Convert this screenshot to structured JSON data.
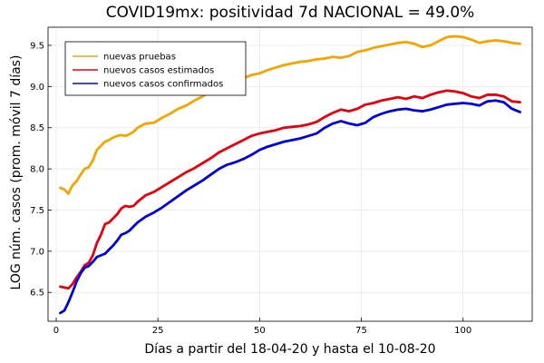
{
  "chart_data": {
    "type": "line",
    "title": "COVID19mx: positividad 7d NACIONAL = 49.0%",
    "xlabel": "Días a partir del 18-04-20 y hasta el 10-08-20",
    "ylabel": "LOG núm. casos (prom. móvil 7 días)",
    "xlim": [
      -2,
      117
    ],
    "ylim": [
      6.15,
      9.72
    ],
    "xticks": [
      0,
      25,
      50,
      75,
      100
    ],
    "yticks": [
      6.5,
      7.0,
      7.5,
      8.0,
      8.5,
      9.0,
      9.5
    ],
    "grid": true,
    "legend_position": "top-left",
    "series": [
      {
        "name": "nuevas pruebas",
        "color": "#f5a400",
        "x": [
          1,
          2,
          3,
          4,
          5,
          6,
          7,
          8,
          9,
          10,
          11,
          12,
          13,
          14,
          15,
          16,
          17,
          18,
          19,
          20,
          22,
          24,
          26,
          28,
          30,
          32,
          34,
          36,
          38,
          40,
          42,
          44,
          46,
          48,
          50,
          52,
          54,
          56,
          58,
          60,
          62,
          64,
          66,
          68,
          70,
          72,
          74,
          76,
          78,
          80,
          82,
          84,
          86,
          88,
          90,
          92,
          94,
          96,
          98,
          100,
          102,
          104,
          106,
          108,
          110,
          112,
          114
        ],
        "values": [
          7.77,
          7.75,
          7.7,
          7.8,
          7.85,
          7.93,
          8.0,
          8.02,
          8.1,
          8.23,
          8.28,
          8.33,
          8.35,
          8.38,
          8.4,
          8.41,
          8.4,
          8.42,
          8.45,
          8.5,
          8.55,
          8.56,
          8.62,
          8.67,
          8.73,
          8.77,
          8.83,
          8.88,
          8.94,
          8.98,
          9.02,
          9.06,
          9.1,
          9.14,
          9.16,
          9.2,
          9.23,
          9.26,
          9.28,
          9.3,
          9.31,
          9.33,
          9.34,
          9.36,
          9.35,
          9.37,
          9.42,
          9.44,
          9.47,
          9.49,
          9.51,
          9.53,
          9.54,
          9.52,
          9.48,
          9.5,
          9.55,
          9.6,
          9.61,
          9.6,
          9.57,
          9.53,
          9.55,
          9.56,
          9.55,
          9.53,
          9.52
        ]
      },
      {
        "name": "nuevos casos estimados",
        "color": "#e8000b",
        "x": [
          1,
          2,
          3,
          4,
          5,
          6,
          7,
          8,
          9,
          10,
          11,
          12,
          13,
          14,
          15,
          16,
          17,
          18,
          19,
          20,
          22,
          24,
          26,
          28,
          30,
          32,
          34,
          36,
          38,
          40,
          42,
          44,
          46,
          48,
          50,
          52,
          54,
          56,
          58,
          60,
          62,
          64,
          66,
          68,
          70,
          72,
          74,
          76,
          78,
          80,
          82,
          84,
          86,
          88,
          90,
          92,
          94,
          96,
          98,
          100,
          102,
          104,
          106,
          108,
          110,
          112,
          114
        ],
        "values": [
          6.57,
          6.56,
          6.55,
          6.6,
          6.68,
          6.75,
          6.83,
          6.86,
          6.95,
          7.1,
          7.2,
          7.33,
          7.35,
          7.4,
          7.45,
          7.52,
          7.55,
          7.54,
          7.55,
          7.6,
          7.68,
          7.72,
          7.78,
          7.84,
          7.9,
          7.96,
          8.01,
          8.07,
          8.13,
          8.2,
          8.25,
          8.3,
          8.35,
          8.4,
          8.43,
          8.45,
          8.47,
          8.5,
          8.51,
          8.52,
          8.54,
          8.57,
          8.63,
          8.68,
          8.72,
          8.7,
          8.73,
          8.78,
          8.8,
          8.83,
          8.85,
          8.87,
          8.85,
          8.88,
          8.86,
          8.9,
          8.93,
          8.95,
          8.94,
          8.92,
          8.88,
          8.86,
          8.9,
          8.9,
          8.88,
          8.82,
          8.81
        ]
      },
      {
        "name": "nuevos casos confirmados",
        "color": "#0000e0",
        "x": [
          1,
          2,
          3,
          4,
          5,
          6,
          7,
          8,
          9,
          10,
          11,
          12,
          13,
          14,
          15,
          16,
          17,
          18,
          19,
          20,
          22,
          24,
          26,
          28,
          30,
          32,
          34,
          36,
          38,
          40,
          42,
          44,
          46,
          48,
          50,
          52,
          54,
          56,
          58,
          60,
          62,
          64,
          66,
          68,
          70,
          72,
          74,
          76,
          78,
          80,
          82,
          84,
          86,
          88,
          90,
          92,
          94,
          96,
          98,
          100,
          102,
          104,
          106,
          108,
          110,
          112,
          114
        ],
        "values": [
          6.25,
          6.28,
          6.38,
          6.5,
          6.63,
          6.73,
          6.8,
          6.82,
          6.87,
          6.93,
          6.95,
          6.97,
          7.02,
          7.07,
          7.13,
          7.2,
          7.22,
          7.25,
          7.3,
          7.35,
          7.42,
          7.47,
          7.53,
          7.6,
          7.67,
          7.74,
          7.8,
          7.86,
          7.93,
          8.0,
          8.05,
          8.08,
          8.12,
          8.17,
          8.23,
          8.27,
          8.3,
          8.33,
          8.35,
          8.37,
          8.4,
          8.43,
          8.5,
          8.55,
          8.58,
          8.55,
          8.53,
          8.56,
          8.63,
          8.67,
          8.7,
          8.72,
          8.73,
          8.71,
          8.7,
          8.72,
          8.75,
          8.78,
          8.79,
          8.8,
          8.79,
          8.77,
          8.82,
          8.83,
          8.81,
          8.73,
          8.69
        ]
      }
    ]
  }
}
